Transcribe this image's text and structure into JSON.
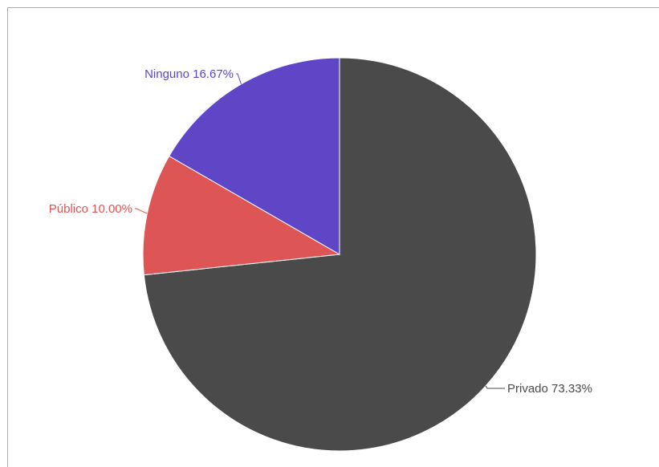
{
  "chart_data": {
    "type": "pie",
    "categories": [
      "Privado",
      "Público",
      "Ninguno"
    ],
    "values": [
      73.33,
      10.0,
      16.67
    ],
    "labels": [
      "Privado 73.33%",
      "Público 10.00%",
      "Ninguno 16.67%"
    ],
    "colors": [
      "#4a4a4a",
      "#dd5555",
      "#5f46c6"
    ],
    "title": "",
    "legend": "none"
  }
}
